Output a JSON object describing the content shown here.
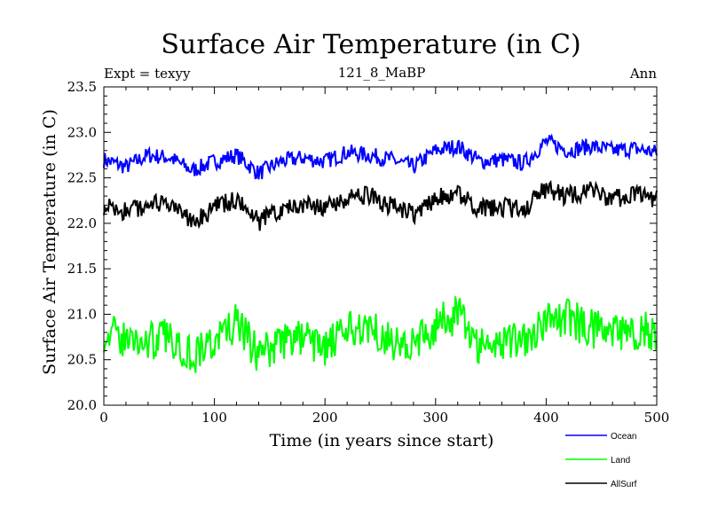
{
  "chart_data": {
    "type": "line",
    "title": "Surface Air Temperature (in C)",
    "subtitle": "121_8_MaBP",
    "annotation_left": "Expt = texyy",
    "annotation_right": "Ann",
    "xlabel": "Time (in years since start)",
    "ylabel": "Surface Air Temperature (in C)",
    "xlim": [
      0,
      500
    ],
    "ylim": [
      20.0,
      23.5
    ],
    "xticks": [
      "0",
      "100",
      "200",
      "300",
      "400",
      "500"
    ],
    "yticks": [
      "20.0",
      "20.5",
      "21.0",
      "21.5",
      "22.0",
      "22.5",
      "23.0",
      "23.5"
    ],
    "grid": false,
    "legend_position": "bottom-right",
    "series": [
      {
        "name": "Ocean",
        "color": "#0000ff",
        "x": [
          0,
          20,
          40,
          60,
          80,
          100,
          120,
          140,
          160,
          180,
          200,
          220,
          240,
          260,
          280,
          300,
          320,
          340,
          360,
          380,
          400,
          420,
          440,
          460,
          480,
          500
        ],
        "values": [
          22.7,
          22.62,
          22.75,
          22.72,
          22.58,
          22.68,
          22.75,
          22.55,
          22.68,
          22.72,
          22.68,
          22.78,
          22.75,
          22.7,
          22.62,
          22.8,
          22.85,
          22.68,
          22.7,
          22.66,
          22.9,
          22.8,
          22.85,
          22.8,
          22.82,
          22.78
        ]
      },
      {
        "name": "Land",
        "color": "#00ff00",
        "x": [
          0,
          20,
          40,
          60,
          80,
          100,
          120,
          140,
          160,
          180,
          200,
          220,
          240,
          260,
          280,
          300,
          320,
          340,
          360,
          380,
          400,
          420,
          440,
          460,
          480,
          500
        ],
        "values": [
          20.8,
          20.72,
          20.7,
          20.75,
          20.55,
          20.7,
          20.9,
          20.55,
          20.7,
          20.75,
          20.62,
          20.8,
          20.9,
          20.7,
          20.65,
          20.88,
          21.0,
          20.65,
          20.7,
          20.75,
          20.92,
          20.95,
          20.85,
          20.78,
          20.8,
          20.82
        ]
      },
      {
        "name": "AllSurf",
        "color": "#000000",
        "x": [
          0,
          20,
          40,
          60,
          80,
          100,
          120,
          140,
          160,
          180,
          200,
          220,
          240,
          260,
          280,
          300,
          320,
          340,
          360,
          380,
          400,
          420,
          440,
          460,
          480,
          500
        ],
        "values": [
          22.2,
          22.12,
          22.22,
          22.18,
          22.02,
          22.18,
          22.25,
          22.02,
          22.15,
          22.22,
          22.15,
          22.28,
          22.3,
          22.18,
          22.1,
          22.28,
          22.35,
          22.15,
          22.18,
          22.15,
          22.38,
          22.3,
          22.35,
          22.28,
          22.3,
          22.28
        ]
      }
    ]
  }
}
